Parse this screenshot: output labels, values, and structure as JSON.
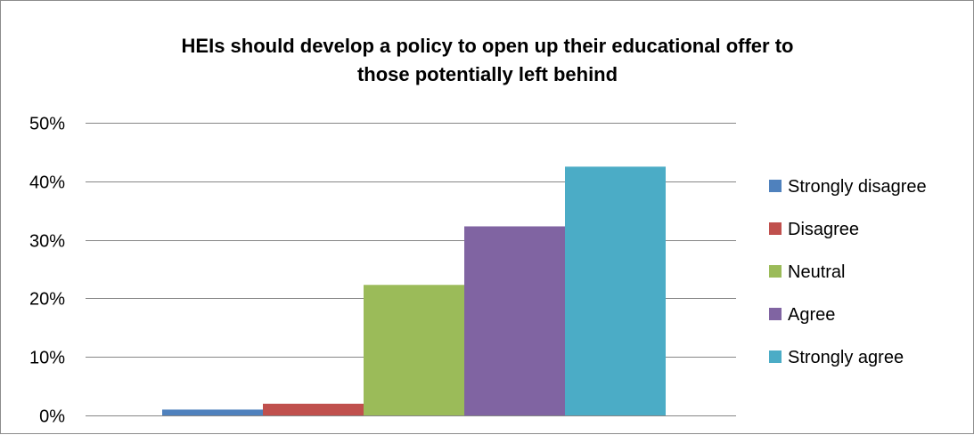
{
  "chart_data": {
    "type": "bar",
    "title": "HEIs should develop a policy to open up their educational offer to those potentially left behind",
    "title_lines": [
      "HEIs should develop a policy to open up their educational offer to",
      "those potentially left behind"
    ],
    "xlabel": "",
    "ylabel": "",
    "ylim": [
      0,
      50
    ],
    "y_ticks": [
      0,
      10,
      20,
      30,
      40,
      50
    ],
    "y_tick_labels": [
      "0%",
      "10%",
      "20%",
      "30%",
      "40%",
      "50%"
    ],
    "grid": true,
    "legend_position": "right",
    "categories": [
      ""
    ],
    "series": [
      {
        "name": "Strongly disagree",
        "values": [
          1
        ],
        "color": "#4f81bd"
      },
      {
        "name": "Disagree",
        "values": [
          2
        ],
        "color": "#c0504d"
      },
      {
        "name": "Neutral",
        "values": [
          22.3
        ],
        "color": "#9bbb59"
      },
      {
        "name": "Agree",
        "values": [
          32.3
        ],
        "color": "#8064a2"
      },
      {
        "name": "Strongly agree",
        "values": [
          42.5
        ],
        "color": "#4bacc6"
      }
    ]
  }
}
